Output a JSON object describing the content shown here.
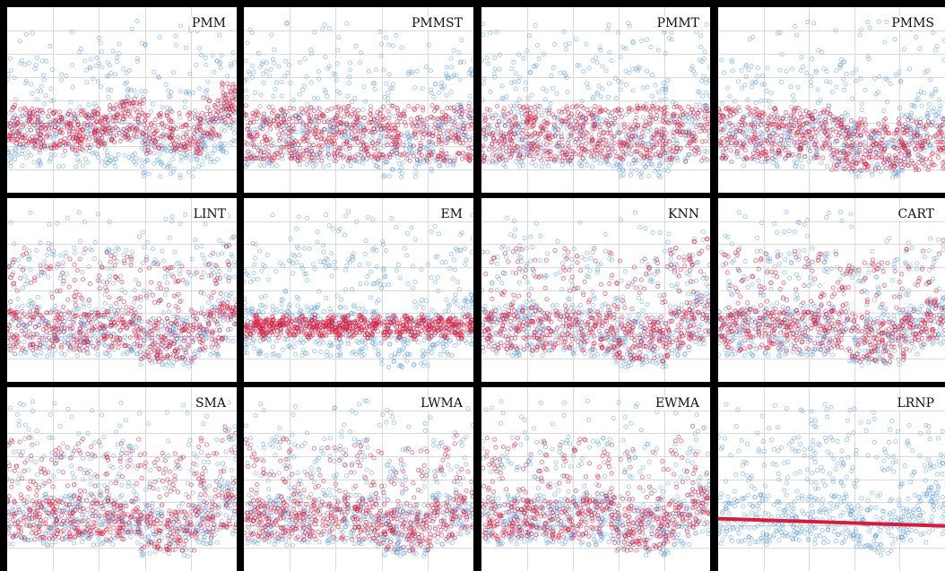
{
  "figure": {
    "colors": {
      "observed": "#5b9bd5",
      "imputed": "#d81b3c",
      "grid": "#d9d9d9",
      "border": "#000000"
    }
  },
  "chart_data": [
    {
      "type": "scatter",
      "title": "PMM",
      "pattern": "trend"
    },
    {
      "type": "scatter",
      "title": "PMMST",
      "pattern": "band"
    },
    {
      "type": "scatter",
      "title": "PMMT",
      "pattern": "band"
    },
    {
      "type": "scatter",
      "title": "PMMS",
      "pattern": "band-step"
    },
    {
      "type": "scatter",
      "title": "LINT",
      "pattern": "follow"
    },
    {
      "type": "scatter",
      "title": "EM",
      "pattern": "constant-band"
    },
    {
      "type": "scatter",
      "title": "KNN",
      "pattern": "follow"
    },
    {
      "type": "scatter",
      "title": "CART",
      "pattern": "follow"
    },
    {
      "type": "scatter",
      "title": "SMA",
      "pattern": "follow"
    },
    {
      "type": "scatter",
      "title": "LWMA",
      "pattern": "follow"
    },
    {
      "type": "scatter",
      "title": "EWMA",
      "pattern": "follow"
    },
    {
      "type": "scatter",
      "title": "LRNP",
      "pattern": "regression-line"
    }
  ]
}
